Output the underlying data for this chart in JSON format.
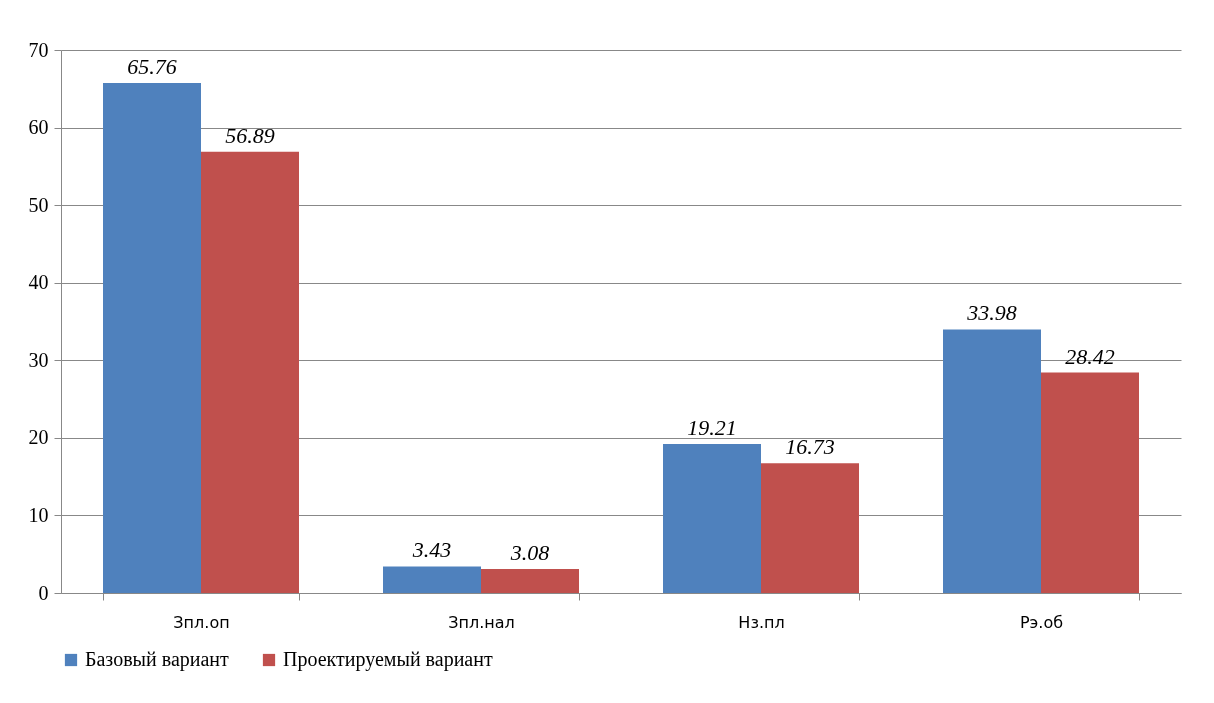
{
  "chart_data": {
    "type": "bar",
    "categories": [
      "Зпл.оп",
      "Зпл.нал",
      "Нз.пл",
      "Рэ.об"
    ],
    "series": [
      {
        "name": "Базовый вариант",
        "color": "#4f81bd",
        "values": [
          65.76,
          3.43,
          19.21,
          33.98
        ]
      },
      {
        "name": "Проектируемый вариант",
        "color": "#c0504d",
        "values": [
          56.89,
          3.08,
          16.73,
          28.42
        ]
      }
    ],
    "ylim": [
      0,
      70
    ],
    "yticks": [
      0,
      10,
      20,
      30,
      40,
      50,
      60,
      70
    ],
    "grid": "y",
    "legend": "bottom",
    "data_labels": true
  }
}
